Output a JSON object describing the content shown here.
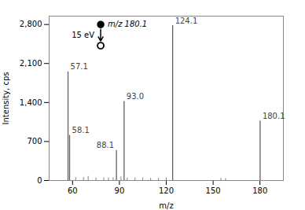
{
  "chart_data": {
    "type": "stem",
    "x": [
      57.1,
      58.1,
      88.1,
      93.0,
      124.1,
      180.1,
      62,
      67,
      70,
      75,
      80,
      83,
      86,
      91,
      95,
      100,
      105,
      110,
      115,
      120,
      155,
      158
    ],
    "values": [
      1950,
      810,
      540,
      1420,
      2780,
      1070,
      55,
      55,
      75,
      45,
      50,
      45,
      50,
      65,
      45,
      50,
      50,
      40,
      40,
      45,
      40,
      35
    ],
    "labels": [
      "57.1",
      "58.1",
      "88.1",
      "93.0",
      "124.1",
      "180.1",
      null,
      null,
      null,
      null,
      null,
      null,
      null,
      null,
      null,
      null,
      null,
      null,
      null,
      null,
      null,
      null
    ],
    "color": "#606060",
    "xlabel": "m/z",
    "ylabel": "Intensity, cps",
    "xlim": [
      45,
      195
    ],
    "ylim": [
      0,
      2950
    ],
    "xticks": [
      60,
      90,
      120,
      150,
      180
    ],
    "yticks": [
      0,
      700,
      1400,
      2100,
      2800
    ],
    "grid": false,
    "fragmentation": {
      "x": 78,
      "parent_y": 2800,
      "fragment_y": 2420,
      "parent_label": "m/z 180.1",
      "energy_label": "15 eV"
    }
  }
}
